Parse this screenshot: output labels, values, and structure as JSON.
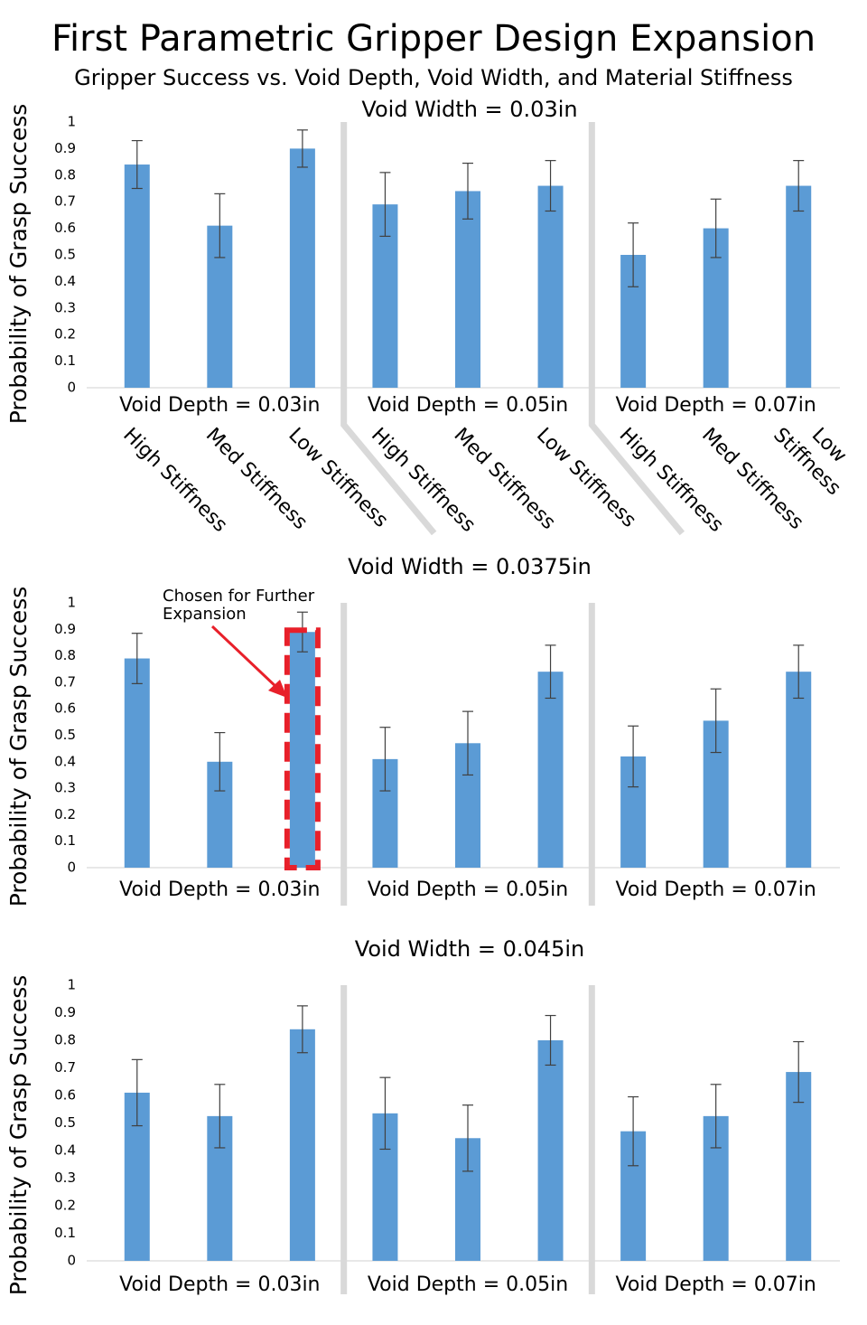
{
  "title": "First Parametric Gripper Design Expansion",
  "subtitle": "Gripper Success vs. Void Depth, Void Width, and Material Stiffness",
  "chart_data": [
    {
      "type": "bar",
      "title": "Void Width = 0.03in",
      "ylabel": "Probability of Grasp Success",
      "categories": [
        "High Stiffness",
        "Med Stiffness",
        "Low Stiffness",
        "High Stiffness",
        "Med Stiffness",
        "Low Stiffness",
        "High Stiffness",
        "Med Stiffness",
        "Low Stiffness"
      ],
      "groups": [
        "Void Depth = 0.03in",
        "Void Depth = 0.05in",
        "Void Depth = 0.07in"
      ],
      "values": [
        0.84,
        0.61,
        0.9,
        0.69,
        0.74,
        0.76,
        0.5,
        0.6,
        0.76
      ],
      "errors": [
        0.09,
        0.12,
        0.07,
        0.12,
        0.105,
        0.095,
        0.12,
        0.11,
        0.095
      ],
      "color": "#5b9bd5",
      "ylim": [
        0,
        1
      ],
      "yticks": [
        0,
        0.1,
        0.2,
        0.3,
        0.4,
        0.5,
        0.6,
        0.7,
        0.8,
        0.9,
        1
      ]
    },
    {
      "type": "bar",
      "title": "Void Width = 0.0375in",
      "ylabel": "Probability of Grasp Success",
      "categories": [
        null,
        null,
        null,
        null,
        null,
        null,
        null,
        null,
        null
      ],
      "groups": [
        "Void Depth = 0.03in",
        "Void Depth = 0.05in",
        "Void Depth = 0.07in"
      ],
      "values": [
        0.79,
        0.4,
        0.89,
        0.41,
        0.47,
        0.74,
        0.42,
        0.555,
        0.74
      ],
      "errors": [
        0.095,
        0.11,
        0.075,
        0.12,
        0.12,
        0.1,
        0.115,
        0.12,
        0.1
      ],
      "color": "#5b9bd5",
      "ylim": [
        0,
        1
      ],
      "yticks": [
        0,
        0.1,
        0.2,
        0.3,
        0.4,
        0.5,
        0.6,
        0.7,
        0.8,
        0.9,
        1
      ],
      "annotation": {
        "text": [
          "Chosen for Further",
          "Expansion"
        ],
        "highlight": 2,
        "color": "#e8202a"
      }
    },
    {
      "type": "bar",
      "title": "Void Width = 0.045in",
      "ylabel": "Probability of Grasp Success",
      "categories": [
        null,
        null,
        null,
        null,
        null,
        null,
        null,
        null,
        null
      ],
      "groups": [
        "Void Depth = 0.03in",
        "Void Depth = 0.05in",
        "Void Depth = 0.07in"
      ],
      "values": [
        0.61,
        0.525,
        0.84,
        0.535,
        0.445,
        0.8,
        0.47,
        0.525,
        0.685
      ],
      "errors": [
        0.12,
        0.115,
        0.085,
        0.13,
        0.12,
        0.09,
        0.125,
        0.115,
        0.11
      ],
      "color": "#5b9bd5",
      "ylim": [
        0,
        1
      ],
      "yticks": [
        0,
        0.1,
        0.2,
        0.3,
        0.4,
        0.5,
        0.6,
        0.7,
        0.8,
        0.9,
        1
      ]
    }
  ]
}
